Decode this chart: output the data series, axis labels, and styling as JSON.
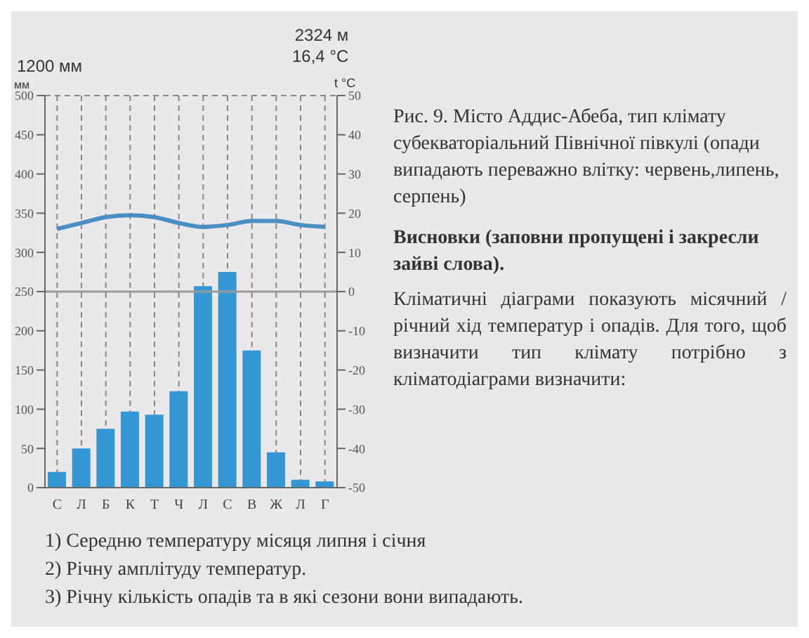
{
  "chart_data": {
    "type": "bar",
    "ylabel": "мм",
    "y2label": "t °C",
    "categories": [
      "С",
      "Л",
      "Б",
      "К",
      "Т",
      "Ч",
      "Л",
      "С",
      "В",
      "Ж",
      "Л",
      "Г"
    ],
    "series": [
      {
        "color": "#3597d3",
        "values": [
          20,
          50,
          75,
          97,
          93,
          123,
          257,
          275,
          175,
          45,
          10,
          8
        ]
      },
      {
        "type": "line",
        "axis": "y2",
        "color": "#4a8fc4",
        "values": [
          16,
          17.5,
          19,
          19.5,
          19,
          17.5,
          16.5,
          17,
          18,
          18,
          17,
          16.5
        ]
      }
    ],
    "ylim": [
      0,
      500
    ],
    "yticks": [
      0,
      50,
      100,
      150,
      200,
      250,
      300,
      350,
      400,
      450,
      500
    ],
    "y2lim": [
      -50,
      50
    ],
    "y2ticks": [
      -50,
      -40,
      -30,
      -20,
      -10,
      0,
      10,
      20,
      30,
      40,
      50
    ],
    "ref_lines": [
      {
        "axis": "y2",
        "value": 0,
        "color": "#999999"
      }
    ],
    "grid": true,
    "marker": "none",
    "line_style": "solid",
    "annotations": [
      "1200 мм",
      "2324 м",
      "16,4 °C",
      "Рис. 9. Місто Аддис-Абеба, тип клімату субекваторіальний Північної півкулі (опади випадають переважно влітку: червень,липень, серпень)",
      "Висновки (заповни пропущені і закресли зайві слова).",
      "Кліматичні діаграми показують місячний / річний хід температур і опадів. Для того, щоб визначити тип клімату потрібно з кліматодіаграми визначити:",
      "1) Середню температуру місяця липня і січня",
      "2) Річну амплітуду температур.",
      "3) Річну кількість опадів та в які сезони вони випадають."
    ]
  }
}
